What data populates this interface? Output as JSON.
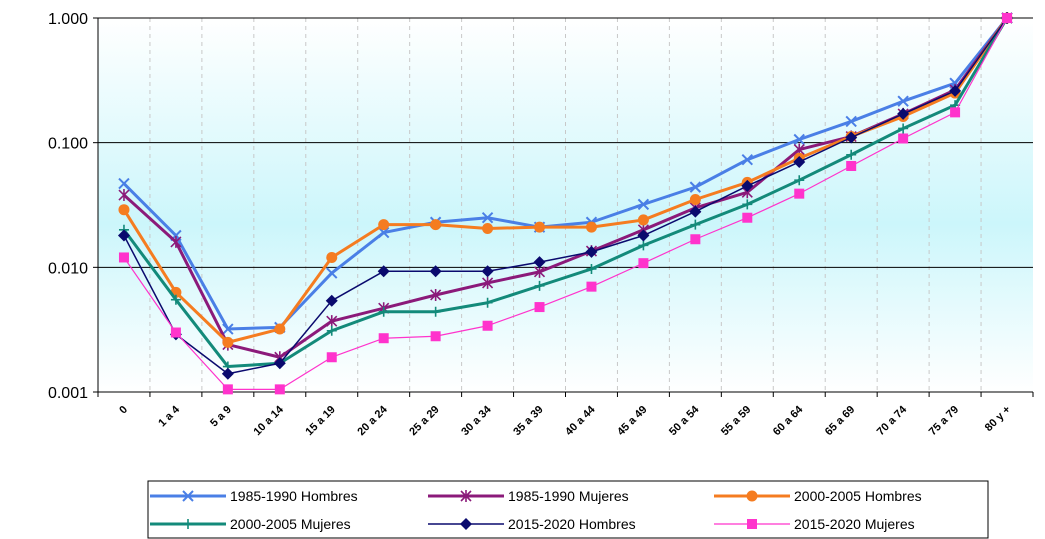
{
  "chart_data": {
    "type": "line",
    "y_scale": "log",
    "ylim": [
      0.001,
      1.0
    ],
    "y_ticks": [
      "1.000",
      "0.100",
      "0.010",
      "0.001"
    ],
    "y_tick_values": [
      1.0,
      0.1,
      0.01,
      0.001
    ],
    "categories": [
      "0",
      "1 a 4",
      "5 a 9",
      "10 a 14",
      "15 a 19",
      "20 a 24",
      "25 a 29",
      "30 a 34",
      "35 a 39",
      "40 a 44",
      "45 a 49",
      "50 a 54",
      "55 a 59",
      "60 a 64",
      "65 a 69",
      "70 a 74",
      "75 a 79",
      "80 y +"
    ],
    "grid": true,
    "legend_position": "bottom",
    "series": [
      {
        "name": "1985-1990 Hombres",
        "color": "#4a7fe6",
        "marker": "x",
        "values": [
          0.047,
          0.018,
          0.0032,
          0.0033,
          0.009,
          0.019,
          0.023,
          0.025,
          0.021,
          0.023,
          0.032,
          0.044,
          0.073,
          0.106,
          0.148,
          0.215,
          0.3,
          1.0
        ]
      },
      {
        "name": "1985-1990 Mujeres",
        "color": "#8b1a7a",
        "marker": "star",
        "values": [
          0.038,
          0.016,
          0.0024,
          0.0019,
          0.0037,
          0.0047,
          0.006,
          0.0075,
          0.0092,
          0.0135,
          0.02,
          0.03,
          0.04,
          0.088,
          0.112,
          0.17,
          0.265,
          1.0
        ]
      },
      {
        "name": "2000-2005 Hombres",
        "color": "#f57c20",
        "marker": "circle",
        "values": [
          0.029,
          0.0063,
          0.0025,
          0.0032,
          0.012,
          0.022,
          0.022,
          0.0205,
          0.021,
          0.021,
          0.024,
          0.035,
          0.048,
          0.075,
          0.112,
          0.162,
          0.25,
          1.0
        ]
      },
      {
        "name": "2000-2005 Mujeres",
        "color": "#138a7a",
        "marker": "plus",
        "values": [
          0.02,
          0.0055,
          0.0016,
          0.0017,
          0.0031,
          0.0044,
          0.0044,
          0.0052,
          0.0071,
          0.0097,
          0.015,
          0.022,
          0.032,
          0.05,
          0.08,
          0.13,
          0.2,
          1.0
        ]
      },
      {
        "name": "2015-2020 Hombres",
        "color": "#0a0a6e",
        "marker": "diamond",
        "values": [
          0.018,
          0.0029,
          0.0014,
          0.0017,
          0.0054,
          0.0093,
          0.0093,
          0.0093,
          0.011,
          0.0133,
          0.018,
          0.028,
          0.045,
          0.07,
          0.11,
          0.17,
          0.26,
          1.0
        ]
      },
      {
        "name": "2015-2020 Mujeres",
        "color": "#ff33cc",
        "marker": "square",
        "values": [
          0.012,
          0.003,
          0.00105,
          0.00105,
          0.0019,
          0.0027,
          0.0028,
          0.0034,
          0.0048,
          0.007,
          0.0108,
          0.0168,
          0.025,
          0.039,
          0.065,
          0.108,
          0.175,
          1.0
        ]
      }
    ]
  }
}
